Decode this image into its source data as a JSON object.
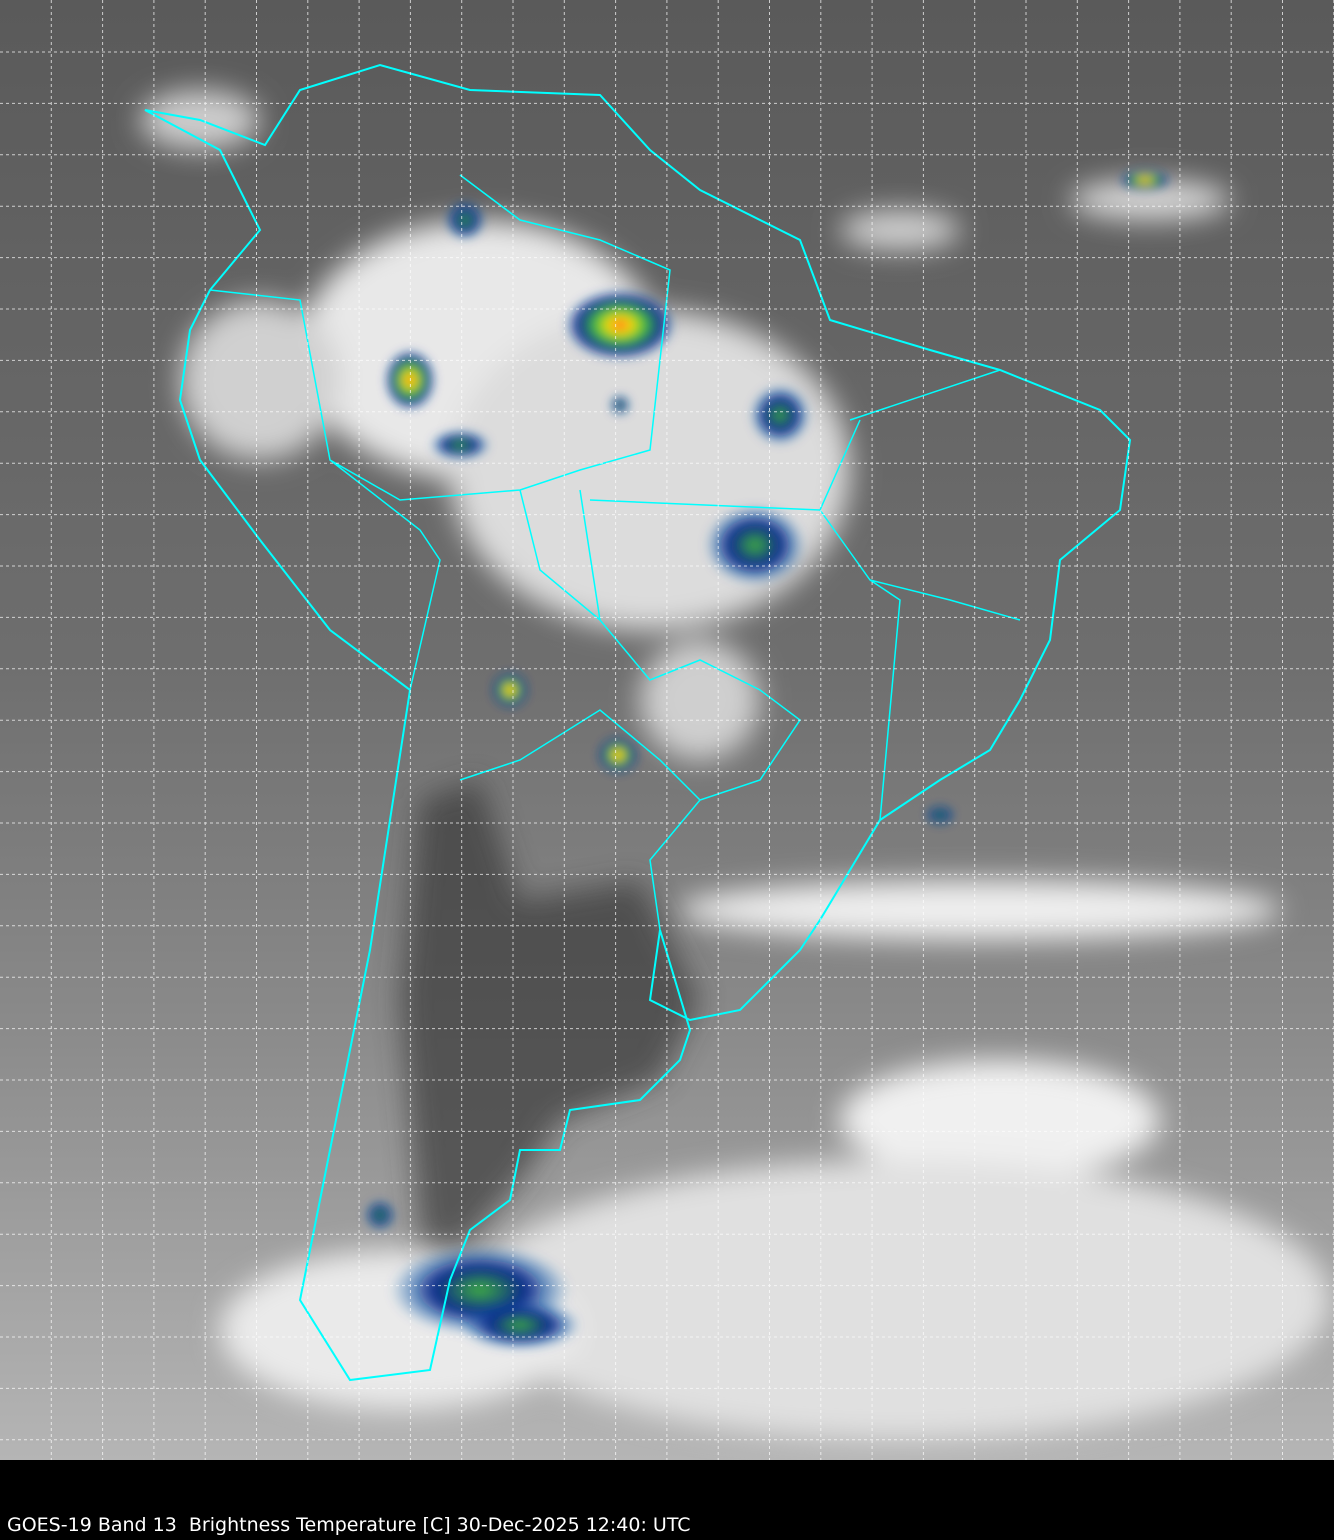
{
  "caption": "GOES-19 Band 13  Brightness Temperature [C] 30-Dec-2025 12:40: UTC",
  "map": {
    "region": "South America",
    "coastline_color": "#00ffff",
    "grid_color": "#ffffff",
    "grid_style": "dashed",
    "colormap": "grayscale with blue-green-yellow-red for coldest cloud tops"
  }
}
